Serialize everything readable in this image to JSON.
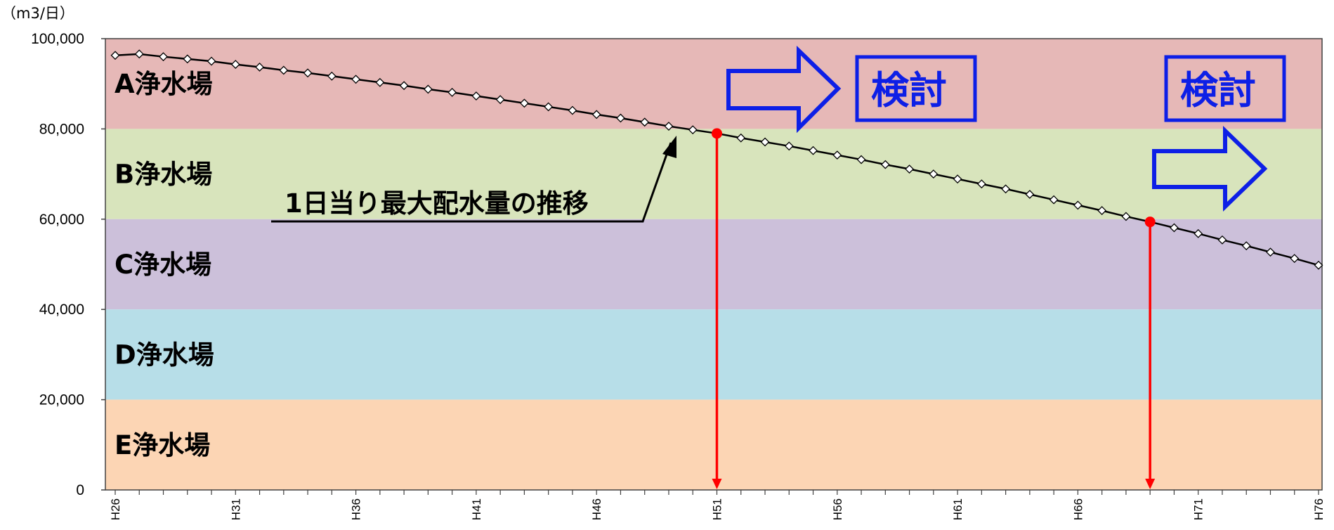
{
  "chart_data": {
    "type": "line",
    "unit_label": "（m3/日）",
    "y_ticks": [
      "0",
      "20,000",
      "40,000",
      "60,000",
      "80,000",
      "100,000"
    ],
    "y_tick_values": [
      0,
      20000,
      40000,
      60000,
      80000,
      100000
    ],
    "ylim": [
      0,
      100000
    ],
    "x_tick_labels": [
      "H26",
      "H31",
      "H36",
      "H41",
      "H46",
      "H51",
      "H56",
      "H61",
      "H66",
      "H71",
      "H76"
    ],
    "x_start_year": 26,
    "x_end_year": 76,
    "grid": false,
    "bands": [
      {
        "label": "A浄水場",
        "from": 80000,
        "to": 100000,
        "color": "#e6b8b7"
      },
      {
        "label": "B浄水場",
        "from": 60000,
        "to": 80000,
        "color": "#d8e4bc"
      },
      {
        "label": "C浄水場",
        "from": 40000,
        "to": 60000,
        "color": "#ccc0da"
      },
      {
        "label": "D浄水場",
        "from": 20000,
        "to": 40000,
        "color": "#b7dee8"
      },
      {
        "label": "E浄水場",
        "from": 0,
        "to": 20000,
        "color": "#fcd5b4"
      }
    ],
    "series": [
      {
        "name": "1日当り最大配水量の推移",
        "color": "#000000",
        "marker": "diamond",
        "x": [
          "H26",
          "H27",
          "H28",
          "H29",
          "H30",
          "H31",
          "H32",
          "H33",
          "H34",
          "H35",
          "H36",
          "H37",
          "H38",
          "H39",
          "H40",
          "H41",
          "H42",
          "H43",
          "H44",
          "H45",
          "H46",
          "H47",
          "H48",
          "H49",
          "H50",
          "H51",
          "H52",
          "H53",
          "H54",
          "H55",
          "H56",
          "H57",
          "H58",
          "H59",
          "H60",
          "H61",
          "H62",
          "H63",
          "H64",
          "H65",
          "H66",
          "H67",
          "H68",
          "H69",
          "H70",
          "H71",
          "H72",
          "H73",
          "H74",
          "H75",
          "H76"
        ],
        "values": [
          96300,
          96600,
          96000,
          95500,
          95000,
          94300,
          93700,
          93000,
          92400,
          91700,
          91000,
          90300,
          89600,
          88800,
          88100,
          87300,
          86500,
          85700,
          84900,
          84100,
          83200,
          82400,
          81500,
          80600,
          79800,
          79000,
          78000,
          77100,
          76200,
          75200,
          74200,
          73200,
          72100,
          71100,
          70000,
          68900,
          67800,
          66700,
          65500,
          64300,
          63100,
          61900,
          60600,
          59400,
          58100,
          56800,
          55400,
          54100,
          52700,
          51300,
          49800
        ]
      }
    ],
    "highlights": [
      {
        "x": "H51",
        "value": 79000,
        "color": "#ff0000"
      },
      {
        "x": "H69",
        "value": 59400,
        "color": "#ff0000"
      }
    ],
    "annotations": {
      "series_label": "1日当り最大配水量の推移",
      "kento_1": "検討",
      "kento_2": "検討",
      "arrow_color": "#0d1fe6"
    }
  }
}
